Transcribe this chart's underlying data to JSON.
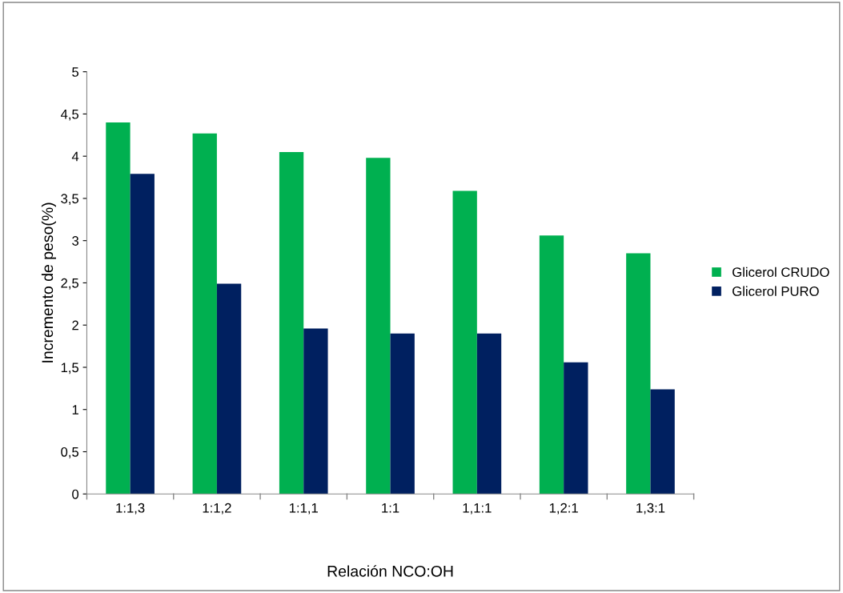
{
  "chart_data": {
    "type": "bar",
    "xlabel": "Relación NCO:OH",
    "ylabel": "Incremento de peso(%)",
    "categories": [
      "1:1,3",
      "1:1,2",
      "1:1,1",
      "1:1",
      "1,1:1",
      "1,2:1",
      "1,3:1"
    ],
    "series": [
      {
        "name": "Glicerol CRUDO",
        "color": "#00b050",
        "values": [
          4.4,
          4.27,
          4.05,
          3.98,
          3.59,
          3.06,
          2.85
        ]
      },
      {
        "name": "Glicerol PURO",
        "color": "#002060",
        "values": [
          3.79,
          2.49,
          1.96,
          1.9,
          1.9,
          1.56,
          1.24
        ]
      }
    ],
    "ylim": [
      0,
      5
    ],
    "yticks": [
      0,
      {
        "value": 0.5,
        "label": "0,5"
      },
      1,
      {
        "value": 1.5,
        "label": "1,5"
      },
      2,
      {
        "value": 2.5,
        "label": "2,5"
      },
      3,
      {
        "value": 3.5,
        "label": "3,5"
      },
      4,
      {
        "value": 4.5,
        "label": "4,5"
      },
      5
    ],
    "grid": false,
    "legend": "right"
  }
}
